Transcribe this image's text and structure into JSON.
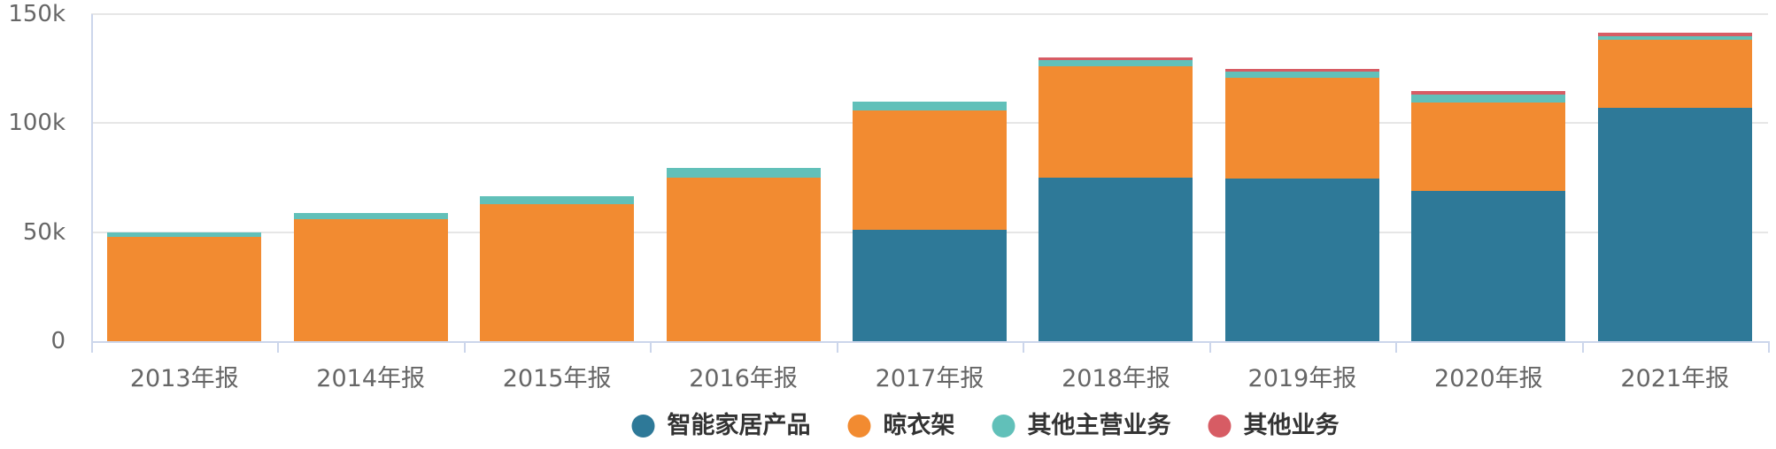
{
  "chart_data": {
    "type": "bar",
    "stacked": true,
    "title": "",
    "xlabel": "",
    "ylabel": "",
    "unit": "k",
    "categories": [
      "2013年报",
      "2014年报",
      "2015年报",
      "2016年报",
      "2017年报",
      "2018年报",
      "2019年报",
      "2020年报",
      "2021年报"
    ],
    "category_keys": [
      "2013",
      "2014",
      "2015",
      "2016",
      "2017",
      "2018",
      "2019",
      "2020",
      "2021"
    ],
    "series": [
      {
        "key": "smart-home",
        "name": "智能家居产品",
        "color": "#2e7998",
        "values": [
          0,
          0,
          0,
          0,
          51.2,
          75.0,
          74.5,
          69.1,
          107.2
        ]
      },
      {
        "key": "clothes-rack",
        "name": "晾衣架",
        "color": "#f28b31",
        "values": [
          47.9,
          55.8,
          63.0,
          75.0,
          54.6,
          51.1,
          46.2,
          40.5,
          30.9
        ]
      },
      {
        "key": "other-main-business",
        "name": "其他主营业务",
        "color": "#61c0b9",
        "values": [
          2.1,
          3.0,
          3.5,
          4.5,
          4.1,
          2.9,
          3.1,
          3.4,
          1.9
        ]
      },
      {
        "key": "other-business",
        "name": "其他业务",
        "color": "#d75c64",
        "values": [
          0,
          0,
          0,
          0,
          0,
          1.1,
          1.2,
          1.6,
          1.3
        ]
      }
    ],
    "totals": [
      50.0,
      58.8,
      66.5,
      79.5,
      109.9,
      130.1,
      125.0,
      114.6,
      141.3
    ],
    "y_axis": {
      "min": 0,
      "max": 150,
      "ticks": [
        0,
        50,
        100,
        150
      ],
      "tick_labels": [
        "0",
        "50k",
        "100k",
        "150k"
      ]
    },
    "grid": true,
    "legend_position": "bottom",
    "colors": {
      "axis_line": "#ccd6eb",
      "gridline": "#e6e6e6",
      "axis_label_text": "#666666",
      "legend_text": "#333333",
      "background": "#ffffff"
    }
  }
}
